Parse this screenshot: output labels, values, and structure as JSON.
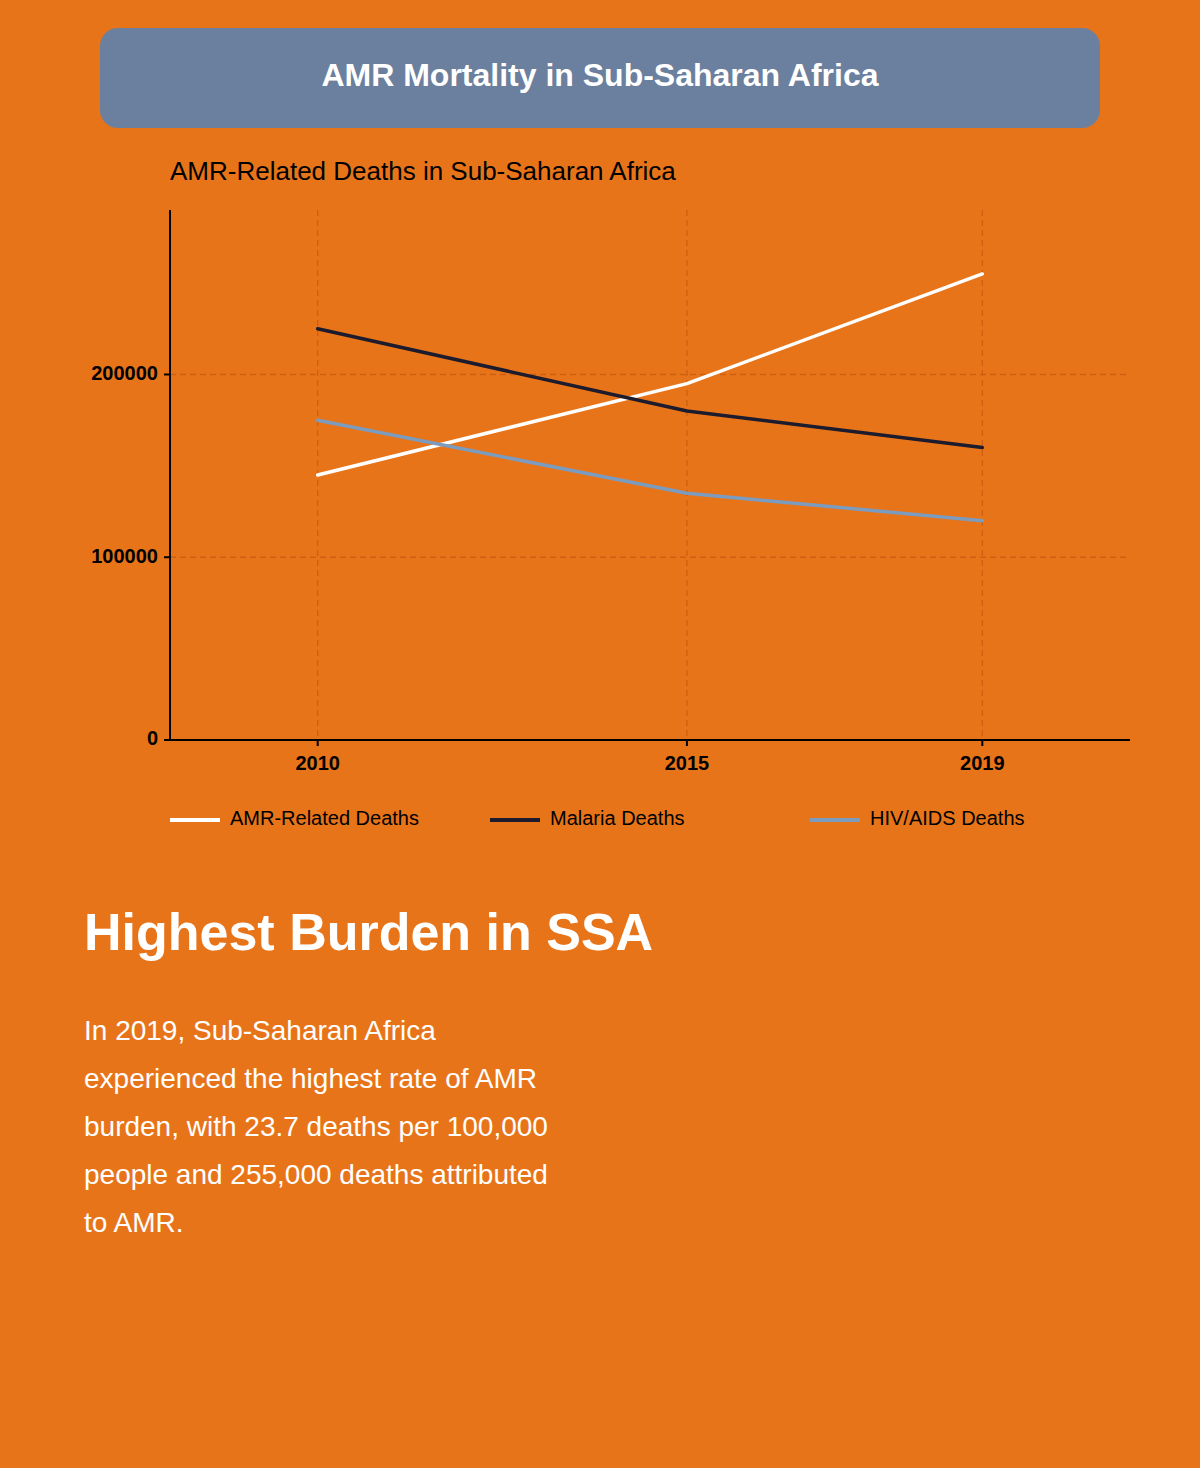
{
  "chart_data": {
    "type": "line",
    "title": "AMR Mortality in Sub-Saharan Africa",
    "subtitle": "AMR-Related Deaths in Sub-Saharan Africa",
    "x": [
      2010,
      2015,
      2019
    ],
    "series": [
      {
        "name": "AMR-Related Deaths",
        "color": "#FFFFFF",
        "values": [
          145000,
          195000,
          255000
        ]
      },
      {
        "name": "Malaria Deaths",
        "color": "#1C1C2E",
        "values": [
          225000,
          180000,
          160000
        ]
      },
      {
        "name": "HIV/AIDS Deaths",
        "color": "#7B9BBF",
        "values": [
          175000,
          135000,
          120000
        ]
      }
    ],
    "xlim": [
      2008,
      2021
    ],
    "xticks": [
      2010,
      2015,
      2019
    ],
    "ylim": [
      0,
      290000
    ],
    "yticks": [
      0,
      100000,
      200000
    ],
    "grid": true,
    "legend": "bottom",
    "annotations": [
      "Highest Burden in SSA",
      "In 2019, Sub-Saharan Africa\nexperienced the highest rate of AMR\nburden, with 23.7 deaths per 100,000\npeople and 255,000 deaths attributed\nto AMR."
    ]
  }
}
